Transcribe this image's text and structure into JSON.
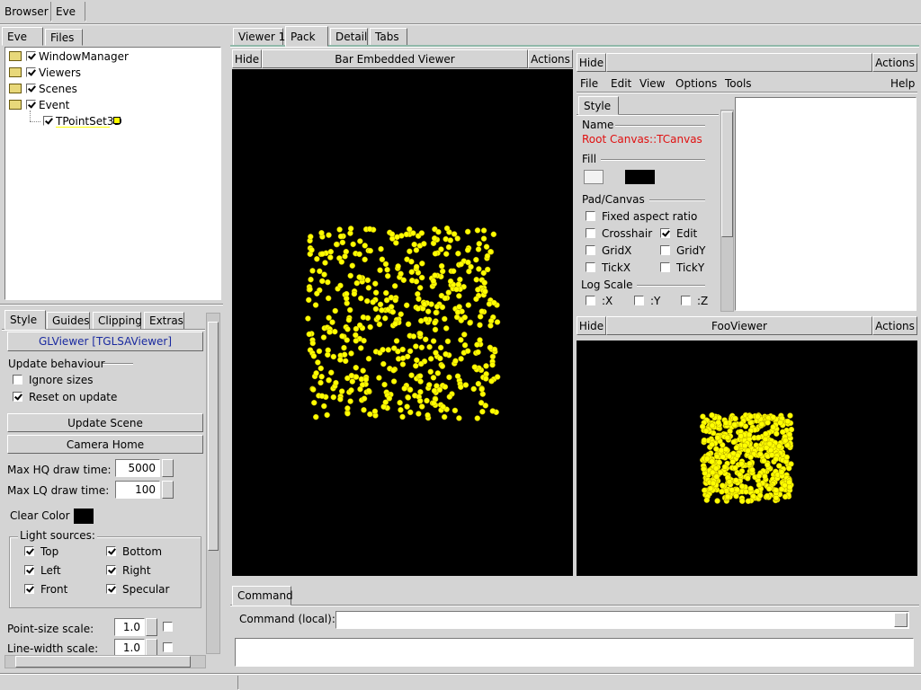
{
  "menu": [
    "Browser",
    "Eve"
  ],
  "left_tabs": [
    "Eve",
    "Files"
  ],
  "tree": [
    {
      "label": "WindowManager",
      "checked": true
    },
    {
      "label": "Viewers",
      "checked": true
    },
    {
      "label": "Scenes",
      "checked": true
    },
    {
      "label": "Event",
      "checked": true
    },
    {
      "label": "TPointSet3D",
      "checked": true
    }
  ],
  "editor": {
    "tabs": [
      "Style",
      "Guides",
      "Clipping",
      "Extras"
    ],
    "object": "GLViewer [TGLSAViewer]",
    "update_group": "Update behaviour",
    "update_options": [
      {
        "label": "Ignore sizes",
        "checked": false
      },
      {
        "label": "Reset on update",
        "checked": true
      }
    ],
    "buttons": [
      "Update Scene",
      "Camera Home"
    ],
    "hq_label": "Max HQ draw time:",
    "hq_value": "5000",
    "lq_label": "Max LQ draw time:",
    "lq_value": "100",
    "clear_color": "Clear Color",
    "lights_title": "Light sources:",
    "lights": [
      {
        "label": "Top",
        "checked": true
      },
      {
        "label": "Bottom",
        "checked": true
      },
      {
        "label": "Left",
        "checked": true
      },
      {
        "label": "Right",
        "checked": true
      },
      {
        "label": "Front",
        "checked": true
      },
      {
        "label": "Specular",
        "checked": true
      }
    ],
    "point_size_label": "Point-size scale:",
    "point_size": "1.0",
    "line_width_label": "Line-width scale:",
    "line_width": "1.0"
  },
  "main_tabs": [
    "Viewer 1",
    "Pack",
    "Detail",
    "Tabs"
  ],
  "viewer": {
    "hide": "Hide",
    "title": "Bar Embedded Viewer",
    "actions": "Actions"
  },
  "canvas_panel": {
    "hide": "Hide",
    "actions": "Actions",
    "menu": [
      "File",
      "Edit",
      "View",
      "Options",
      "Tools",
      "Help"
    ],
    "tab": "Style",
    "name_label": "Name",
    "name_value": "Root Canvas::TCanvas",
    "fill_label": "Fill",
    "pad_label": "Pad/Canvas",
    "options": [
      {
        "label": "Fixed aspect ratio",
        "checked": false
      },
      {
        "label": "Crosshair",
        "checked": false
      },
      {
        "label": "Edit",
        "checked": true
      },
      {
        "label": "GridX",
        "checked": false
      },
      {
        "label": "GridY",
        "checked": false
      },
      {
        "label": "TickX",
        "checked": false
      },
      {
        "label": "TickY",
        "checked": false
      }
    ],
    "log_label": "Log Scale",
    "log_options": [
      {
        "label": ":X",
        "checked": false
      },
      {
        "label": ":Y",
        "checked": false
      },
      {
        "label": ":Z",
        "checked": false
      }
    ]
  },
  "foo_viewer": {
    "hide": "Hide",
    "title": "FooViewer",
    "actions": "Actions"
  },
  "command": {
    "tab": "Command",
    "label": "Command (local):"
  }
}
